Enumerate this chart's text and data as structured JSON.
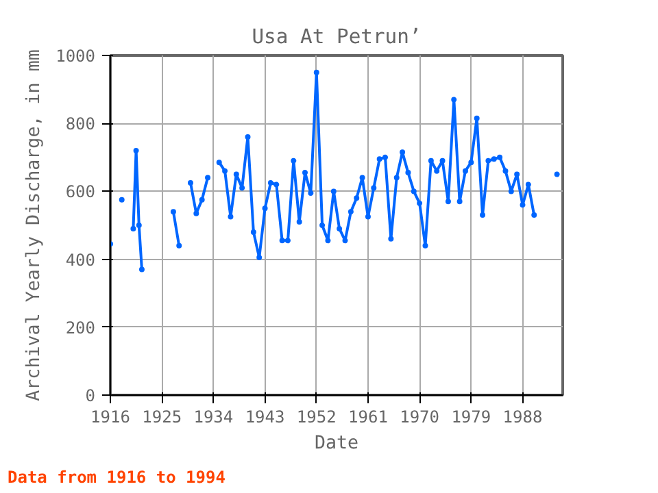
{
  "chart_data": {
    "type": "line",
    "title": "Usa At Petrun’",
    "xlabel": "Date",
    "ylabel": "Archival Yearly Discharge, in mm",
    "annotations": [
      "Data from 1916 to 1994"
    ],
    "x": [
      1916,
      1917,
      1918,
      1919,
      1920,
      1920.5,
      1921,
      1921.5,
      1922,
      1923,
      1924,
      1925,
      1926,
      1927,
      1928,
      1929,
      1930,
      1931,
      1932,
      1933,
      1934,
      1935,
      1936,
      1937,
      1938,
      1939,
      1940,
      1941,
      1942,
      1943,
      1944,
      1945,
      1946,
      1947,
      1948,
      1949,
      1950,
      1951,
      1952,
      1953,
      1954,
      1955,
      1956,
      1957,
      1958,
      1959,
      1960,
      1961,
      1962,
      1963,
      1964,
      1965,
      1966,
      1967,
      1968,
      1969,
      1970,
      1971,
      1972,
      1973,
      1974,
      1975,
      1976,
      1977,
      1978,
      1979,
      1980,
      1981,
      1982,
      1983,
      1984,
      1985,
      1986,
      1987,
      1988,
      1989,
      1990,
      1991,
      1992,
      1993,
      1994
    ],
    "series": [
      {
        "color": "#0066ff",
        "values": [
          445,
          null,
          575,
          null,
          490,
          720,
          500,
          370,
          null,
          null,
          null,
          null,
          null,
          540,
          440,
          null,
          625,
          535,
          575,
          640,
          null,
          685,
          660,
          525,
          650,
          610,
          760,
          480,
          405,
          550,
          625,
          620,
          455,
          455,
          690,
          510,
          655,
          595,
          950,
          500,
          455,
          600,
          490,
          455,
          540,
          580,
          640,
          525,
          610,
          695,
          700,
          460,
          640,
          715,
          655,
          600,
          565,
          440,
          690,
          660,
          690,
          570,
          870,
          570,
          660,
          685,
          815,
          530,
          690,
          695,
          700,
          660,
          600,
          650,
          560,
          620,
          530,
          null,
          null,
          null,
          650
        ]
      }
    ],
    "xlim": [
      1916,
      1995
    ],
    "xticks": [
      1916,
      1925,
      1934,
      1943,
      1952,
      1961,
      1970,
      1979,
      1988
    ],
    "ylim": [
      0,
      1000
    ],
    "yticks": [
      0,
      200,
      400,
      600,
      800,
      1000
    ],
    "grid": true,
    "marker": "circle",
    "line_style": "solid"
  }
}
